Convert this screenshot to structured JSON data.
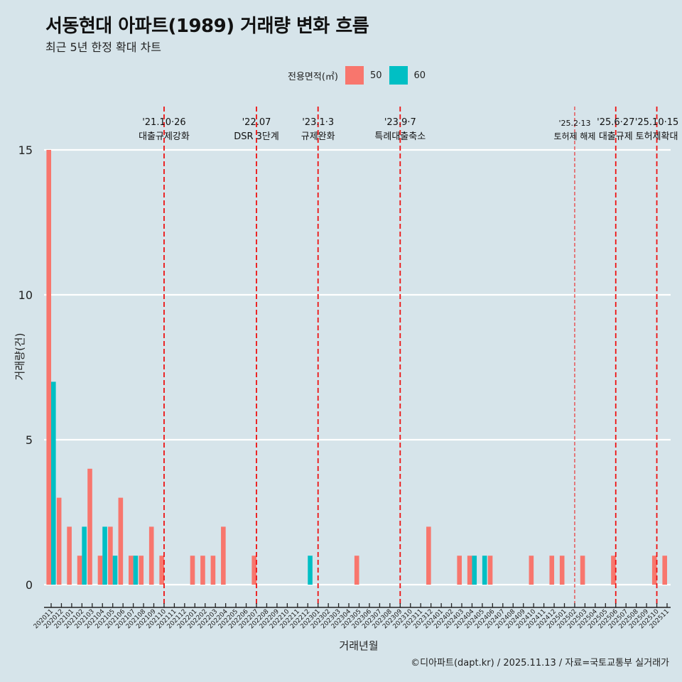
{
  "chart_data": {
    "type": "bar",
    "title": "서동현대 아파트(1989) 거래량 변화 흐름",
    "subtitle": "최근 5년 한정 확대 차트",
    "xlabel": "거래년월",
    "ylabel": "거래량(건)",
    "ylim": [
      0,
      15
    ],
    "yticks": [
      0,
      5,
      10,
      15
    ],
    "grid": "horizontal-major",
    "legend": {
      "title": "전용면적(㎡)",
      "placement": "top"
    },
    "categories": [
      "202011",
      "202012",
      "202101",
      "202102",
      "202103",
      "202104",
      "202105",
      "202106",
      "202107",
      "202108",
      "202109",
      "202110",
      "202111",
      "202112",
      "202201",
      "202202",
      "202203",
      "202204",
      "202205",
      "202206",
      "202207",
      "202208",
      "202209",
      "202210",
      "202211",
      "202212",
      "202301",
      "202302",
      "202303",
      "202304",
      "202305",
      "202306",
      "202307",
      "202308",
      "202309",
      "202310",
      "202311",
      "202312",
      "202401",
      "202402",
      "202403",
      "202404",
      "202405",
      "202406",
      "202407",
      "202408",
      "202409",
      "202410",
      "202411",
      "202412",
      "202501",
      "202502",
      "202503",
      "202504",
      "202505",
      "202506",
      "202507",
      "202508",
      "202509",
      "202510",
      "202511"
    ],
    "series": [
      {
        "name": "50",
        "color": "#f8766d",
        "values": [
          15,
          3,
          2,
          1,
          4,
          1,
          2,
          3,
          1,
          1,
          2,
          1,
          0,
          0,
          1,
          1,
          1,
          2,
          0,
          0,
          1,
          0,
          0,
          0,
          0,
          0,
          0,
          0,
          0,
          0,
          1,
          0,
          0,
          0,
          0,
          0,
          0,
          2,
          0,
          0,
          1,
          1,
          0,
          1,
          0,
          0,
          0,
          1,
          0,
          1,
          1,
          0,
          1,
          0,
          0,
          1,
          0,
          0,
          0,
          1,
          1
        ]
      },
      {
        "name": "60",
        "color": "#00bfc4",
        "values": [
          7,
          0,
          0,
          2,
          0,
          2,
          1,
          0,
          1,
          0,
          0,
          0,
          0,
          0,
          0,
          0,
          0,
          0,
          0,
          0,
          0,
          0,
          0,
          0,
          0,
          1,
          0,
          0,
          0,
          0,
          0,
          0,
          0,
          0,
          0,
          0,
          0,
          0,
          0,
          0,
          0,
          1,
          1,
          0,
          0,
          0,
          0,
          0,
          0,
          0,
          0,
          0,
          0,
          0,
          0,
          0,
          0,
          0,
          0,
          0,
          0
        ]
      }
    ],
    "annotations": [
      {
        "month": "202110",
        "date": "'21.10·26",
        "label": "대출규제강화",
        "style": "bold"
      },
      {
        "month": "202207",
        "date": "'22.07",
        "label": "DSR 3단계",
        "style": "bold"
      },
      {
        "month": "202301",
        "date": "'23.1·3",
        "label": "규제완화",
        "style": "bold"
      },
      {
        "month": "202309",
        "date": "'23.9·7",
        "label": "특례대출축소",
        "style": "bold"
      },
      {
        "month": "202502",
        "date": "'25.2·13",
        "label": "토허제 해제",
        "style": "thin"
      },
      {
        "month": "202506",
        "date": "'25.6·27",
        "label": "대출규제",
        "style": "bold"
      },
      {
        "month": "202510",
        "date": "'25.10·15",
        "label": "토허제확대",
        "style": "bold"
      }
    ],
    "caption": "©디아파트(dapt.kr) / 2025.11.13 / 자료=국토교통부 실거래가"
  }
}
